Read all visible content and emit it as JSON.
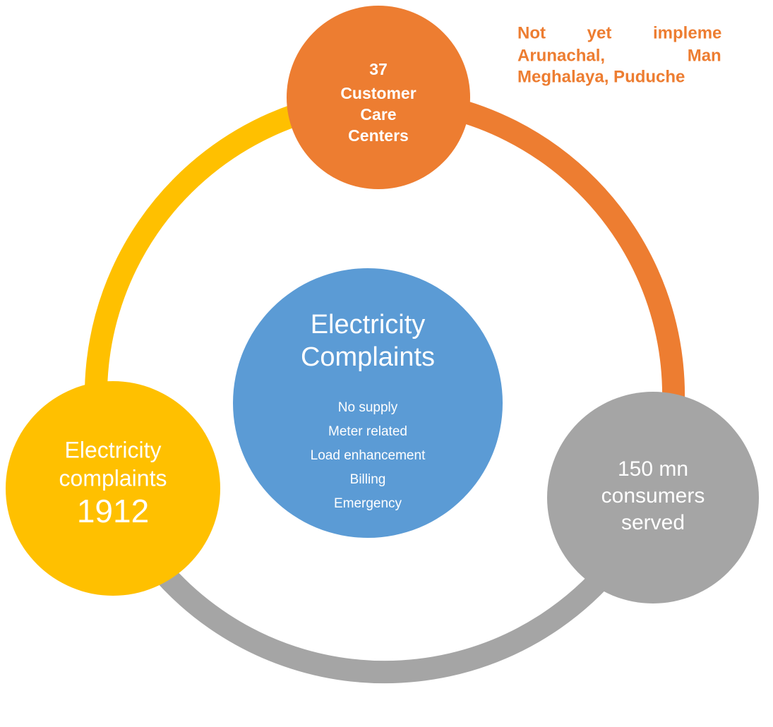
{
  "center": {
    "title": [
      "Electricity",
      "Complaints"
    ],
    "items": [
      "No supply",
      "Meter related",
      "Load enhancement",
      "Billing",
      "Emergency"
    ]
  },
  "nodes": [
    {
      "lines": [
        "37",
        "Customer",
        "Care",
        "Centers"
      ]
    },
    {
      "lines": [
        "Electricity",
        "complaints",
        "1912"
      ]
    },
    {
      "lines": [
        "150 mn",
        "consumers",
        "served"
      ]
    }
  ],
  "note": {
    "lines": [
      "Not yet impleme",
      "Arunachal, Man",
      "Meghalaya, Puduche"
    ]
  }
}
